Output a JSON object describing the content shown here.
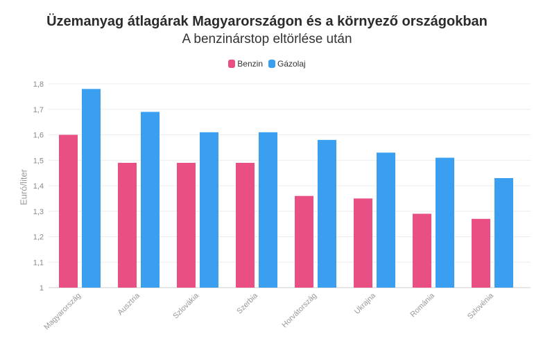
{
  "chart_data": {
    "type": "bar",
    "title": "Üzemanyag átlagárak Magyarországon és a környező országokban",
    "subtitle": "A benzinárstop eltörlése után",
    "ylabel": "Euró/liter",
    "xlabel": "",
    "ylim": [
      1,
      1.8
    ],
    "yticks": [
      "1",
      "1,1",
      "1,2",
      "1,3",
      "1,4",
      "1,5",
      "1,6",
      "1,7",
      "1,8"
    ],
    "grid": true,
    "legend_position": "top-center",
    "categories": [
      "Magyarország",
      "Ausztria",
      "Szlovákia",
      "Szerbia",
      "Horvátország",
      "Ukrajna",
      "Románia",
      "Szlovénia"
    ],
    "series": [
      {
        "name": "Benzin",
        "color": "#e94f83",
        "values": [
          1.6,
          1.49,
          1.49,
          1.49,
          1.36,
          1.35,
          1.29,
          1.27
        ]
      },
      {
        "name": "Gázolaj",
        "color": "#3a9ff0",
        "values": [
          1.78,
          1.69,
          1.61,
          1.61,
          1.58,
          1.53,
          1.51,
          1.43
        ]
      }
    ]
  }
}
